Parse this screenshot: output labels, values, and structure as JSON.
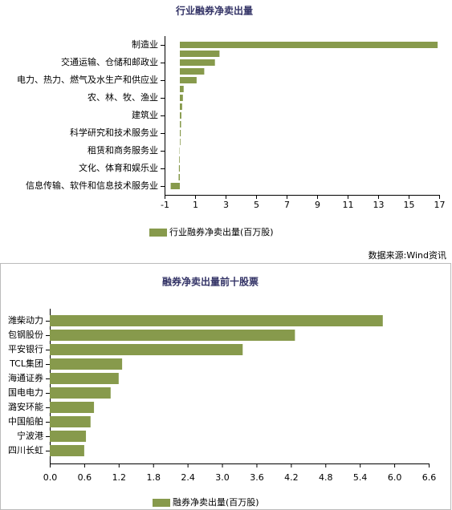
{
  "chart_data": [
    {
      "type": "bar",
      "orientation": "horizontal",
      "title": "行业融券净卖出量",
      "categories": [
        "制造业",
        null,
        "交通运输、仓储和邮政业",
        null,
        "电力、热力、燃气及水生产和供应业",
        null,
        "农、林、牧、渔业",
        null,
        "建筑业",
        null,
        "科学研究和技术服务业",
        null,
        "租赁和商务服务业",
        null,
        "文化、体育和娱乐业",
        null,
        "信息传输、软件和信息技术服务业"
      ],
      "series": [
        {
          "name": "行业融券净卖出量(百万股)",
          "color": "#879a4c",
          "values": [
            16.9,
            2.6,
            2.3,
            1.6,
            1.1,
            0.25,
            0.2,
            0.15,
            0.1,
            0.08,
            0.06,
            0.04,
            -0.02,
            -0.04,
            -0.06,
            -0.08,
            -0.6
          ]
        }
      ],
      "xlim": [
        -1,
        17
      ],
      "xticks": [
        -1,
        1,
        3,
        5,
        7,
        9,
        11,
        13,
        15,
        17
      ],
      "source": "数据来源:Wind资讯"
    },
    {
      "type": "bar",
      "orientation": "horizontal",
      "title": "融券净卖出量前十股票",
      "categories": [
        "潍柴动力",
        "包钢股份",
        "平安银行",
        "TCL集团",
        "海通证券",
        "国电电力",
        "潞安环能",
        "中国船舶",
        "宁波港",
        "四川长虹"
      ],
      "series": [
        {
          "name": "融券净卖出量(百万股)",
          "color": "#879a4c",
          "values": [
            5.8,
            4.27,
            3.36,
            1.26,
            1.2,
            1.06,
            0.77,
            0.71,
            0.63,
            0.6
          ]
        }
      ],
      "xlim": [
        0,
        6.6
      ],
      "xticks": [
        {
          "value": 0,
          "label": "0.0"
        },
        0.6,
        1.2,
        1.8,
        2.4,
        {
          "value": 3,
          "label": "3.0"
        },
        3.6,
        4.2,
        4.8,
        5.4,
        {
          "value": 6,
          "label": "6.0"
        },
        6.6
      ]
    }
  ]
}
